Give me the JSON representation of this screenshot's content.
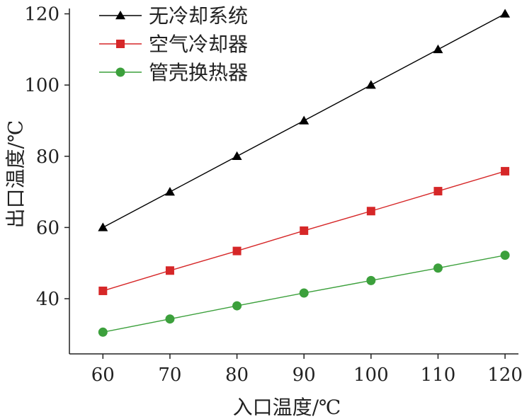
{
  "chart_data": {
    "type": "line",
    "title": "",
    "xlabel": "入口温度/℃",
    "ylabel": "出口温度/℃",
    "x": [
      60,
      70,
      80,
      90,
      100,
      110,
      120
    ],
    "x_ticks": [
      "60",
      "70",
      "80",
      "90",
      "100",
      "110",
      "120"
    ],
    "y_ticks": [
      "40",
      "60",
      "80",
      "100",
      "120"
    ],
    "xlim": [
      55,
      122
    ],
    "ylim": [
      24.5,
      121.5
    ],
    "grid": false,
    "legend_position": "top-left",
    "series": [
      {
        "name": "无冷却系统",
        "color": "#000000",
        "marker": "triangle",
        "values": [
          60,
          70,
          80,
          90,
          100,
          110,
          120
        ]
      },
      {
        "name": "空气冷却器",
        "color": "#d62728",
        "marker": "square",
        "values": [
          42.2,
          47.9,
          53.4,
          59.1,
          64.6,
          70.2,
          75.8
        ]
      },
      {
        "name": "管壳换热器",
        "color": "#3ca03c",
        "marker": "circle",
        "values": [
          30.6,
          34.3,
          38.0,
          41.6,
          45.1,
          48.6,
          52.2
        ]
      }
    ]
  }
}
